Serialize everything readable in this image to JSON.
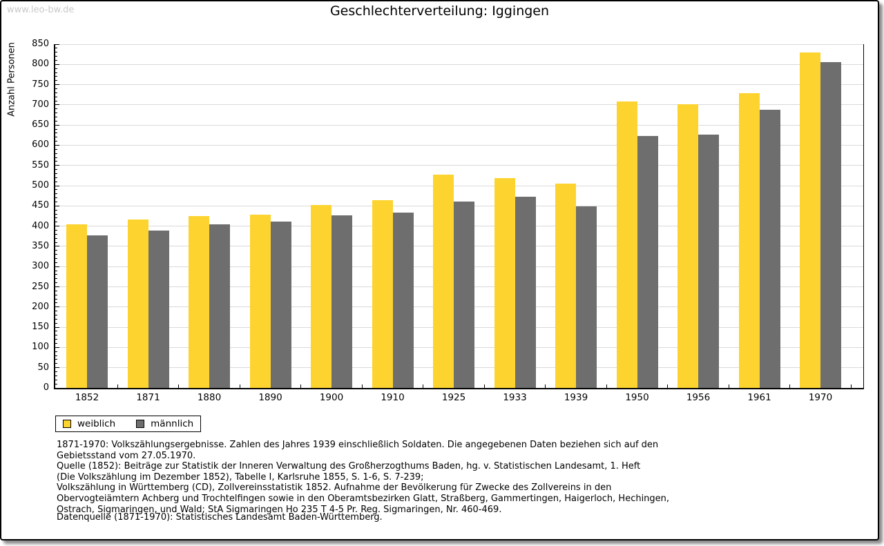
{
  "watermark": "www.leo-bw.de",
  "title": "Geschlechterverteilung: Iggingen",
  "chart_data": {
    "type": "bar",
    "title": "Geschlechterverteilung: Iggingen",
    "xlabel": "",
    "ylabel": "Anzahl Personen",
    "categories": [
      "1852",
      "1871",
      "1880",
      "1890",
      "1900",
      "1910",
      "1925",
      "1933",
      "1939",
      "1950",
      "1956",
      "1961",
      "1970"
    ],
    "series": [
      {
        "name": "weiblich",
        "color": "#fdd32f",
        "values": [
          405,
          417,
          425,
          428,
          453,
          464,
          527,
          519,
          505,
          708,
          702,
          728,
          830
        ]
      },
      {
        "name": "männlich",
        "color": "#6e6e6e",
        "values": [
          377,
          390,
          405,
          411,
          427,
          434,
          461,
          473,
          449,
          623,
          627,
          687,
          805
        ]
      }
    ],
    "ylim": [
      0,
      850
    ],
    "ytick_step": 50,
    "minor_tick_step": 10,
    "grid": true,
    "gridline_color": "#d9d9d9",
    "legend_position": "bottom-left"
  },
  "footer": {
    "source_lines": [
      "1871-1970: Volkszählungsergebnisse. Zahlen des Jahres 1939 einschließlich Soldaten. Die angegebenen Daten beziehen sich auf den",
      "Gebietsstand vom 27.05.1970.",
      "Quelle (1852): Beiträge zur Statistik der Inneren Verwaltung des Großherzogthums Baden, hg. v. Statistischen Landesamt, 1. Heft",
      "(Die Volkszählung im Dezember 1852), Tabelle I, Karlsruhe 1855, S. 1-6, S. 7-239;",
      "Volkszählung in Württemberg (CD), Zollvereinsstatistik 1852. Aufnahme der Bevölkerung für Zwecke des Zollvereins in den",
      "Obervogteiämtern Achberg und Trochtelfingen sowie in den Oberamtsbezirken Glatt, Straßberg, Gammertingen, Haigerloch, Hechingen,",
      "Ostrach, Sigmaringen, und Wald; StA Sigmaringen Ho 235 T 4-5 Pr. Reg. Sigmaringen, Nr. 460-469."
    ],
    "datenquelle": "Datenquelle (1871-1970): Statistisches Landesamt Baden-Württemberg."
  }
}
